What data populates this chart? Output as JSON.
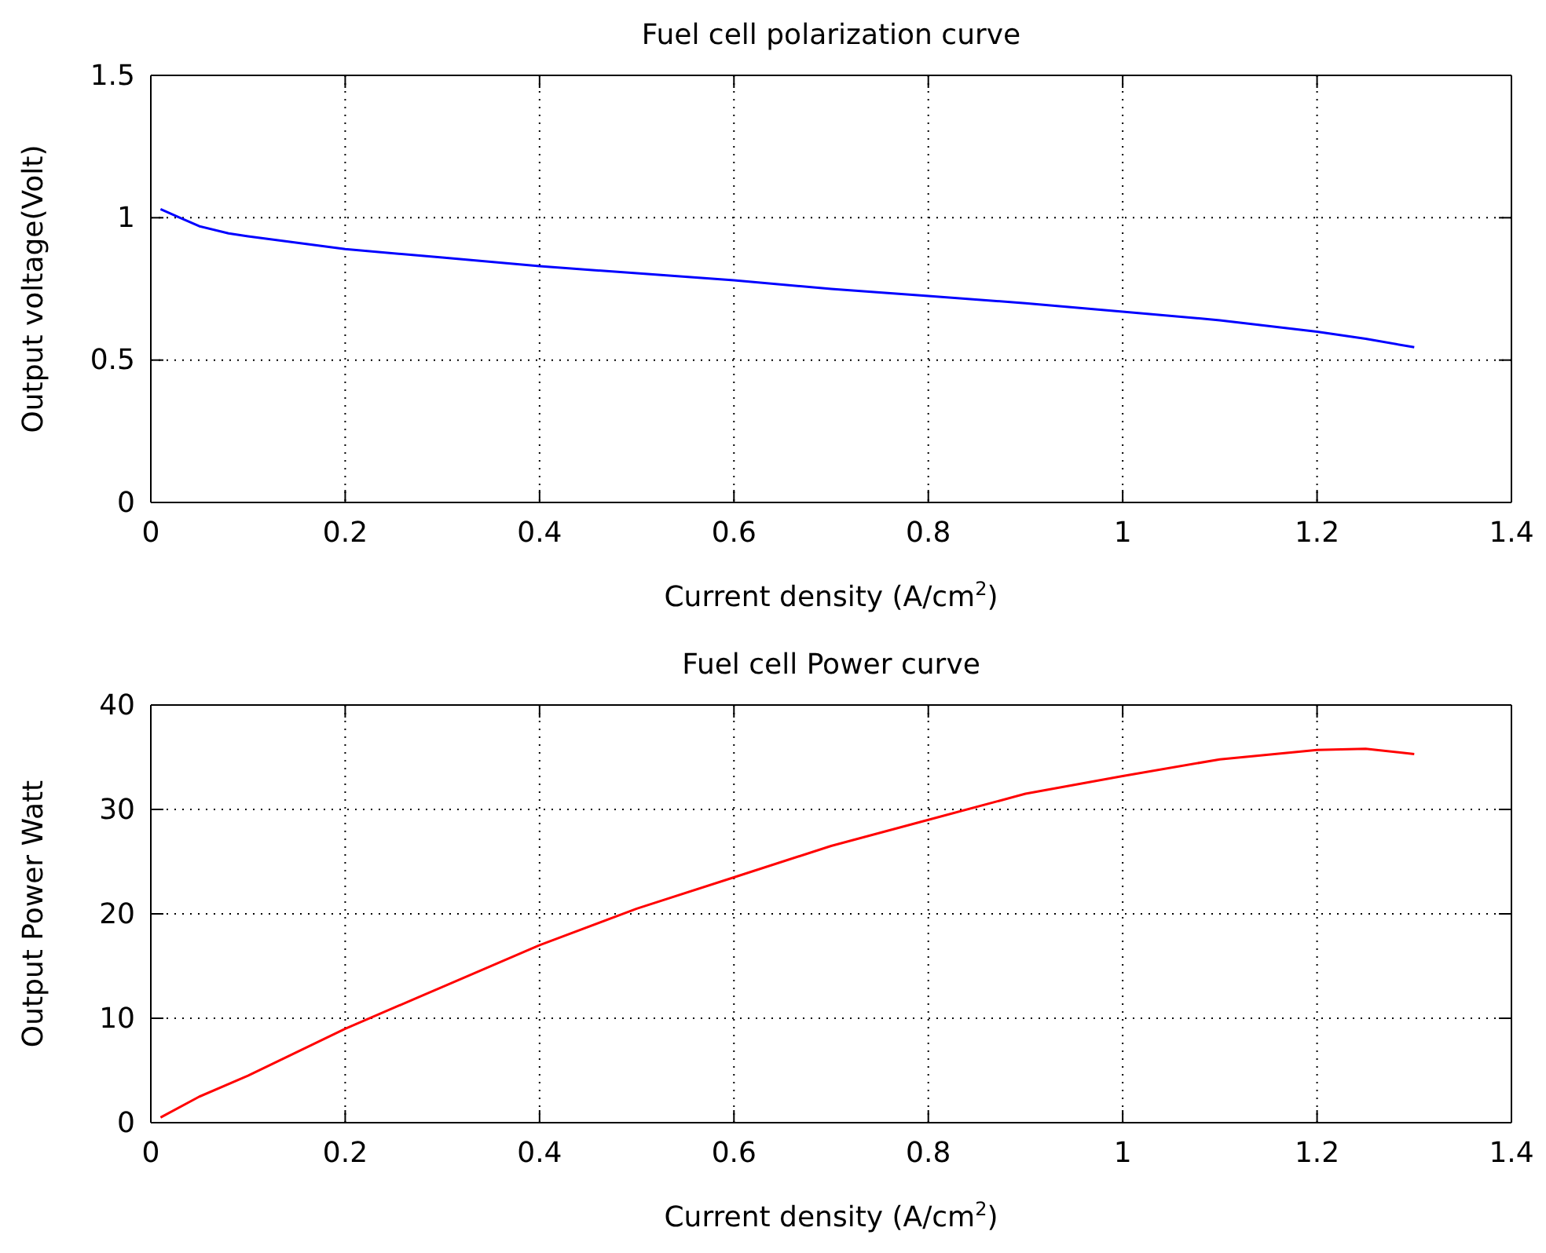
{
  "chart_data": [
    {
      "type": "line",
      "title": "Fuel cell polarization curve",
      "xlabel": "Current density (A/cm$^{2}$)",
      "ylabel": "Output voltage(Volt)",
      "x": [
        0.01,
        0.03,
        0.05,
        0.08,
        0.1,
        0.2,
        0.3,
        0.4,
        0.5,
        0.6,
        0.7,
        0.8,
        0.9,
        1.0,
        1.1,
        1.2,
        1.25,
        1.3
      ],
      "series": [
        {
          "color": "#0000ff",
          "values": [
            1.03,
            1.0,
            0.97,
            0.945,
            0.935,
            0.89,
            0.86,
            0.83,
            0.805,
            0.78,
            0.75,
            0.725,
            0.7,
            0.67,
            0.64,
            0.6,
            0.575,
            0.545
          ]
        }
      ],
      "xlim": [
        0,
        1.4
      ],
      "xticks": [
        0,
        0.2,
        0.4,
        0.6,
        0.8,
        1,
        1.2,
        1.4
      ],
      "ylim": [
        0,
        1.5
      ],
      "yticks": [
        0,
        0.5,
        1,
        1.5
      ],
      "grid": true,
      "line_style": "solid"
    },
    {
      "type": "line",
      "title": "Fuel cell Power curve",
      "xlabel": "Current density (A/cm$^{2}$)",
      "ylabel": "Output Power Watt",
      "x": [
        0.01,
        0.05,
        0.1,
        0.2,
        0.3,
        0.4,
        0.5,
        0.6,
        0.7,
        0.8,
        0.9,
        1.0,
        1.1,
        1.2,
        1.25,
        1.3
      ],
      "series": [
        {
          "color": "#ff0000",
          "values": [
            0.5,
            2.5,
            4.5,
            9,
            13,
            17,
            20.5,
            23.5,
            26.5,
            29,
            31.5,
            33.2,
            34.8,
            35.7,
            35.8,
            35.3
          ]
        }
      ],
      "xlim": [
        0,
        1.4
      ],
      "xticks": [
        0,
        0.2,
        0.4,
        0.6,
        0.8,
        1,
        1.2,
        1.4
      ],
      "ylim": [
        0,
        40
      ],
      "yticks": [
        0,
        10,
        20,
        30,
        40
      ],
      "grid": true,
      "line_style": "solid"
    }
  ]
}
